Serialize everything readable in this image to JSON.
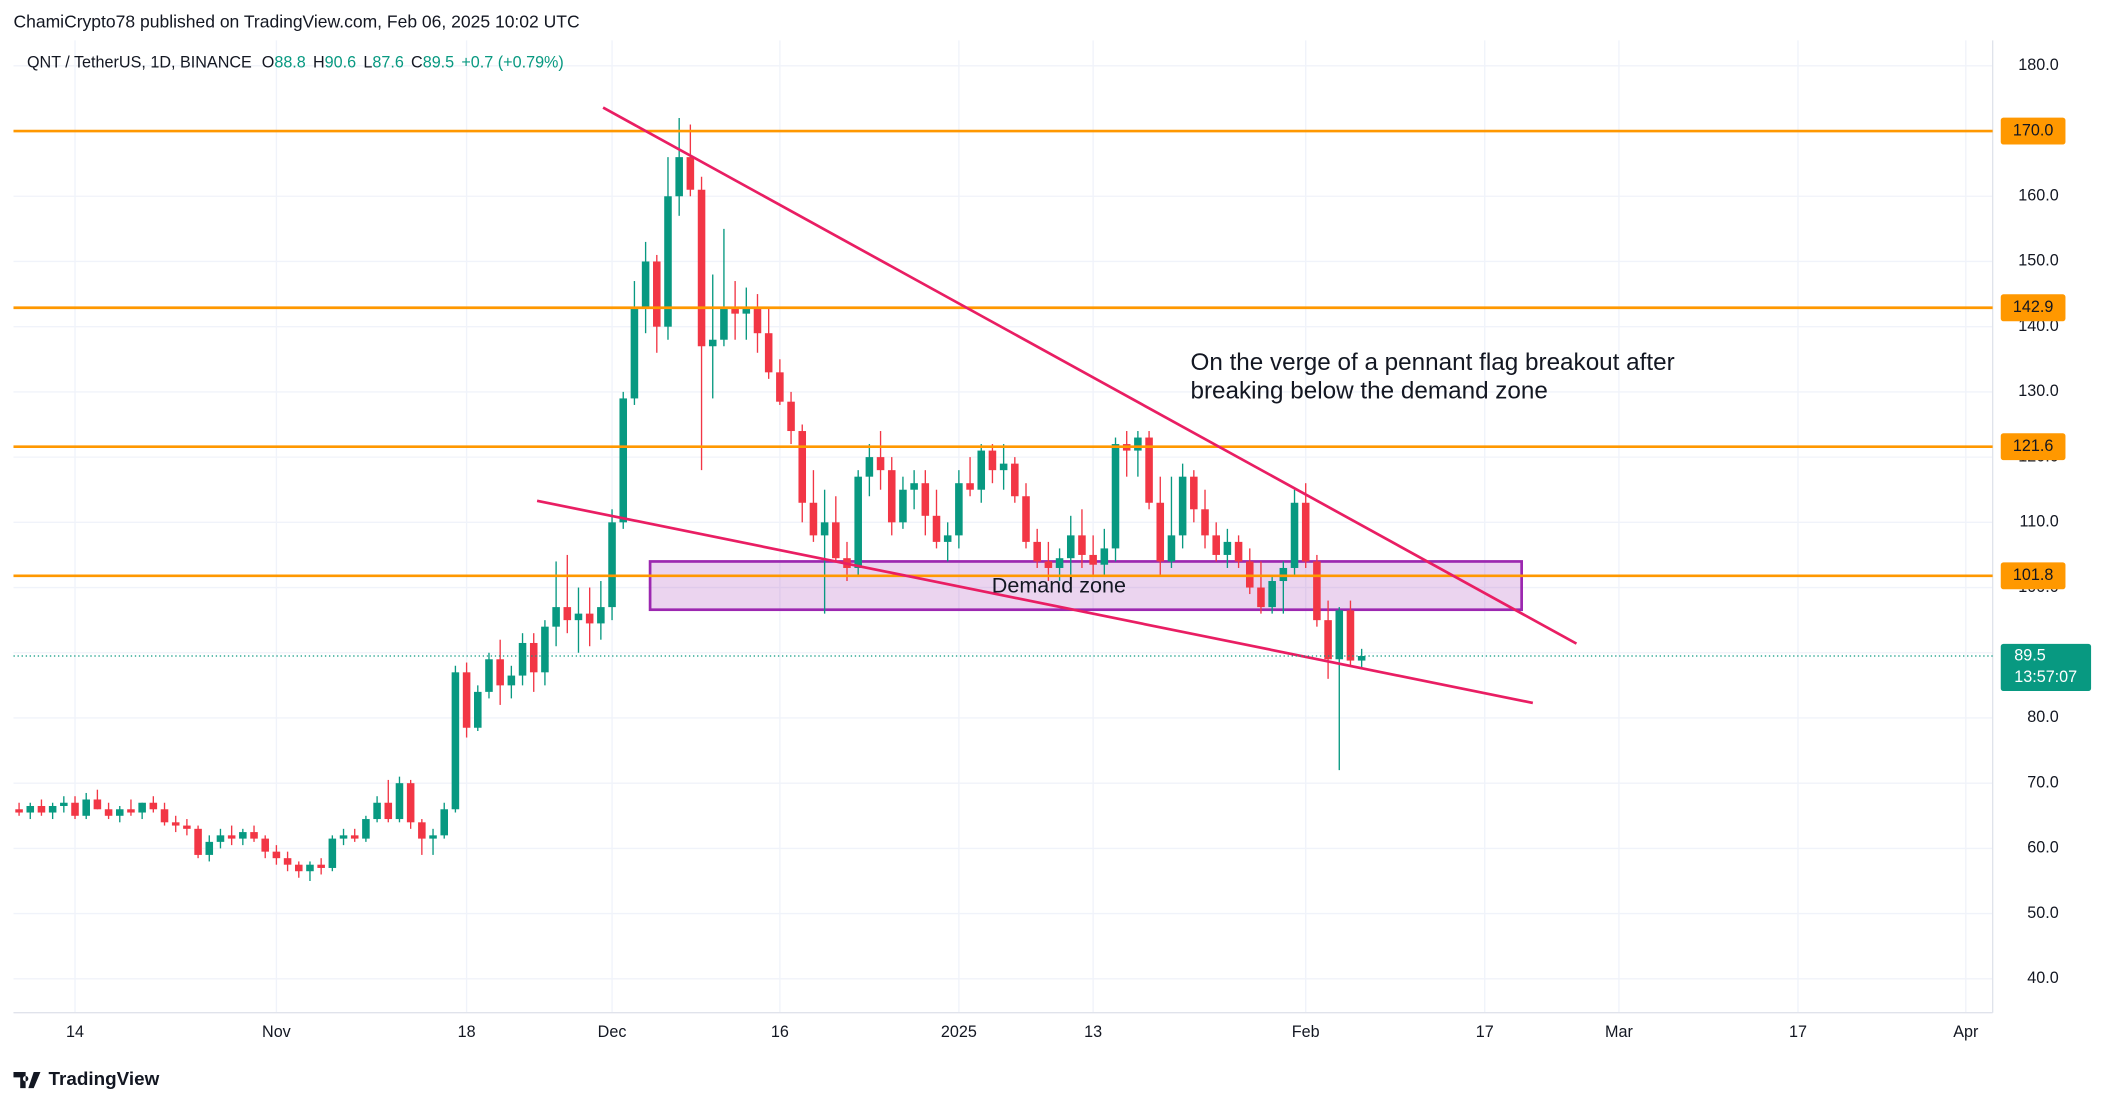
{
  "header": "ChamiCrypto78 published on TradingView.com, Feb 06, 2025 10:02 UTC",
  "footer": "TradingView",
  "chart_data": {
    "type": "candlestick",
    "symbol": "QNT / TetherUS, 1D, BINANCE",
    "ohlc_labels": [
      "O",
      "H",
      "L",
      "C"
    ],
    "change": "+0.7 (+0.79%)",
    "countdown": "13:57:07",
    "up_color": "#089981",
    "down_color": "#f23645",
    "series": {
      "open": [
        66,
        65.5,
        66.5,
        65.5,
        66.5,
        67,
        65,
        67.5,
        66,
        65,
        66,
        65.5,
        67,
        66,
        64,
        63.5,
        63,
        59,
        61,
        62,
        61.5,
        62.5,
        61.5,
        59.5,
        58.5,
        57.5,
        56.5,
        57.5,
        57,
        61.5,
        62,
        61.5,
        64.5,
        67,
        64.5,
        70,
        64,
        61.5,
        62,
        66,
        87,
        78.5,
        84,
        89,
        85,
        86.5,
        91.5,
        87,
        94,
        97,
        95,
        96,
        94.5,
        97,
        110,
        129,
        143,
        150,
        140,
        160,
        166,
        161,
        137,
        138,
        143,
        142,
        143,
        139,
        133,
        128.5,
        124,
        113,
        108,
        110,
        104.5,
        103,
        117,
        120,
        118,
        110,
        115,
        116,
        111,
        107,
        108,
        116,
        115,
        121,
        118,
        119,
        114,
        107,
        104,
        103,
        104.5,
        108,
        105,
        103.5,
        106,
        122,
        121,
        123,
        113,
        104,
        108,
        117,
        112,
        108,
        105,
        107,
        104,
        100,
        97,
        101,
        103,
        113,
        104,
        95,
        89,
        96.5,
        88.8
      ],
      "high": [
        67,
        67,
        67.5,
        67,
        68,
        68,
        68.5,
        69,
        67,
        66.5,
        67.5,
        67,
        68,
        67,
        65,
        64.5,
        63.5,
        62,
        63,
        63.5,
        63,
        63.5,
        62,
        60.5,
        59.5,
        58,
        58,
        58.5,
        62,
        63,
        63,
        65,
        68,
        70.5,
        71,
        70.5,
        64.5,
        63,
        67,
        88,
        88.5,
        85,
        90,
        92,
        88,
        93,
        93,
        95,
        104,
        105,
        100,
        100,
        101,
        112,
        130,
        147,
        153,
        151,
        166,
        172,
        171,
        163,
        148,
        155,
        147,
        146,
        145,
        143,
        135,
        130,
        125,
        118,
        115,
        114,
        107,
        118,
        122,
        124,
        120,
        117,
        118,
        118,
        115,
        110,
        118,
        120,
        122,
        122,
        122,
        120,
        116,
        109,
        107,
        106,
        111,
        112,
        108,
        109,
        123,
        124,
        124,
        124,
        117,
        117,
        119,
        118,
        115,
        110,
        109,
        108,
        106,
        104,
        102,
        104,
        115,
        116,
        105,
        98,
        97,
        98,
        90.6
      ],
      "low": [
        65,
        64.5,
        65,
        64.5,
        65.5,
        64.5,
        64.5,
        66,
        64.5,
        64,
        65,
        64.5,
        65.5,
        63.5,
        62.5,
        62,
        58.5,
        58,
        60,
        60.5,
        60.5,
        61,
        58.5,
        57.5,
        56.5,
        55.5,
        55,
        56,
        56.5,
        60.5,
        61,
        61,
        64,
        64,
        64,
        63,
        59,
        59,
        61.5,
        65.5,
        77,
        78,
        83,
        82,
        83,
        85,
        84,
        85,
        91,
        93,
        90,
        91,
        92,
        95,
        109,
        128,
        139,
        136,
        138,
        157,
        160,
        118,
        129,
        137,
        138,
        138,
        136,
        132,
        128,
        122,
        110,
        107,
        96,
        104,
        101,
        102,
        114,
        115,
        108,
        109,
        112,
        108,
        106,
        104,
        106,
        114,
        113,
        116,
        115,
        113,
        106,
        103,
        101,
        101,
        102,
        103,
        102,
        102,
        104,
        117,
        117,
        112,
        102,
        103,
        106,
        110,
        106,
        104,
        103,
        103,
        99,
        96,
        96,
        96,
        102,
        103,
        94,
        86,
        72,
        88,
        87.6
      ],
      "close": [
        65.5,
        66.5,
        65.5,
        66.5,
        67,
        65,
        67.5,
        66,
        65,
        66,
        65.5,
        67,
        66,
        64,
        63.5,
        63,
        59,
        61,
        62,
        61.5,
        62.5,
        61.5,
        59.5,
        58.5,
        57.5,
        56.5,
        57.5,
        57,
        61.5,
        62,
        61.5,
        64.5,
        67,
        64.5,
        70,
        64,
        61.5,
        62,
        66,
        87,
        78.5,
        84,
        89,
        85,
        86.5,
        91.5,
        87,
        94,
        97,
        95,
        96,
        94.5,
        97,
        110,
        129,
        143,
        150,
        140,
        160,
        166,
        161,
        137,
        138,
        143,
        142,
        143,
        139,
        133,
        128.5,
        124,
        113,
        108,
        110,
        104.5,
        103,
        117,
        120,
        118,
        110,
        115,
        116,
        111,
        107,
        108,
        116,
        115,
        121,
        118,
        119,
        114,
        107,
        104,
        103,
        104.5,
        108,
        105,
        103.5,
        106,
        122,
        121,
        123,
        113,
        104,
        108,
        117,
        112,
        108,
        105,
        107,
        104,
        100,
        97,
        101,
        103,
        113,
        104,
        95,
        89,
        96.5,
        88.8,
        89.5
      ]
    },
    "xlim": [
      -0.5,
      176.4
    ],
    "xticks": [
      {
        "value": 5,
        "label": "14"
      },
      {
        "value": 23,
        "label": "Nov"
      },
      {
        "value": 40,
        "label": "18"
      },
      {
        "value": 53,
        "label": "Dec"
      },
      {
        "value": 68,
        "label": "16"
      },
      {
        "value": 84,
        "label": "2025"
      },
      {
        "value": 96,
        "label": "13"
      },
      {
        "value": 115,
        "label": "Feb"
      },
      {
        "value": 131,
        "label": "17"
      },
      {
        "value": 143,
        "label": "Mar"
      },
      {
        "value": 159,
        "label": "17"
      },
      {
        "value": 174,
        "label": "Apr"
      }
    ],
    "ylim": [
      34.8,
      183.9
    ],
    "yticks": [
      {
        "value": 40,
        "label": "40.0"
      },
      {
        "value": 50,
        "label": "50.0"
      },
      {
        "value": 60,
        "label": "60.0"
      },
      {
        "value": 70,
        "label": "70.0"
      },
      {
        "value": 80,
        "label": "80.0"
      },
      {
        "value": 90,
        "label": "90.0"
      },
      {
        "value": 100,
        "label": "100.0"
      },
      {
        "value": 110,
        "label": "110.0"
      },
      {
        "value": 120,
        "label": "120.0"
      },
      {
        "value": 130,
        "label": "130.0"
      },
      {
        "value": 140,
        "label": "140.0"
      },
      {
        "value": 150,
        "label": "150.0"
      },
      {
        "value": 160,
        "label": "160.0"
      },
      {
        "value": 170,
        "label": "170.0"
      },
      {
        "value": 180,
        "label": "180.0"
      }
    ],
    "grid": true,
    "levels": {
      "color": "#ff9800",
      "values": [
        {
          "value": 170,
          "label": "170.0"
        },
        142.9,
        121.6,
        101.8
      ]
    },
    "trendlines": {
      "color": "#e91e63",
      "lines": [
        {
          "x": [
            52.2,
            139.2
          ],
          "y": [
            173.6,
            91.4
          ]
        },
        {
          "x": [
            46.3,
            135.3
          ],
          "y": [
            113.3,
            82.3
          ]
        }
      ]
    },
    "zone": {
      "label": "Demand zone",
      "x": [
        56.4,
        134.3
      ],
      "y": [
        96.6,
        104.0
      ],
      "color": "#9c27b0"
    },
    "annotation": [
      "On the verge of a pennant flag breakout after",
      "breaking below the demand zone"
    ]
  }
}
